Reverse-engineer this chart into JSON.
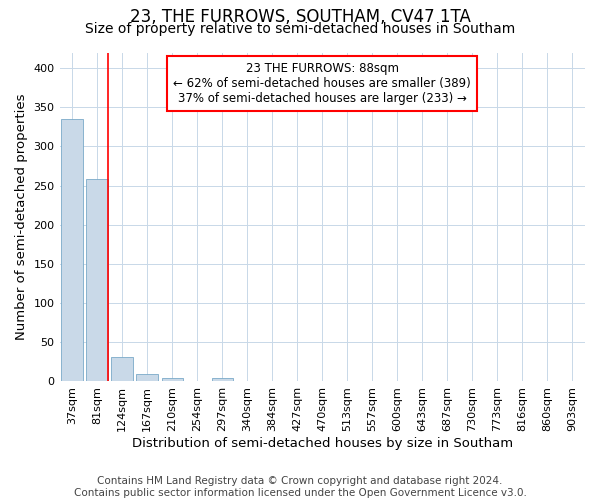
{
  "title": "23, THE FURROWS, SOUTHAM, CV47 1TA",
  "subtitle": "Size of property relative to semi-detached houses in Southam",
  "xlabel": "Distribution of semi-detached houses by size in Southam",
  "ylabel": "Number of semi-detached properties",
  "annotation_line1": "23 THE FURROWS: 88sqm",
  "annotation_line2": "← 62% of semi-detached houses are smaller (389)",
  "annotation_line3": "37% of semi-detached houses are larger (233) →",
  "footer_line1": "Contains HM Land Registry data © Crown copyright and database right 2024.",
  "footer_line2": "Contains public sector information licensed under the Open Government Licence v3.0.",
  "categories": [
    "37sqm",
    "81sqm",
    "124sqm",
    "167sqm",
    "210sqm",
    "254sqm",
    "297sqm",
    "340sqm",
    "384sqm",
    "427sqm",
    "470sqm",
    "513sqm",
    "557sqm",
    "600sqm",
    "643sqm",
    "687sqm",
    "730sqm",
    "773sqm",
    "816sqm",
    "860sqm",
    "903sqm"
  ],
  "values": [
    335,
    258,
    31,
    9,
    5,
    0,
    4,
    0,
    0,
    0,
    0,
    0,
    0,
    0,
    0,
    0,
    0,
    0,
    0,
    0,
    0
  ],
  "bar_color": "#c9d9e8",
  "bar_edge_color": "#7aaac8",
  "property_line_idx": 1,
  "property_line_color": "red",
  "annotation_box_edgecolor": "red",
  "ylim": [
    0,
    420
  ],
  "yticks": [
    0,
    50,
    100,
    150,
    200,
    250,
    300,
    350,
    400
  ],
  "background_color": "#ffffff",
  "grid_color": "#c8d8e8",
  "title_fontsize": 12,
  "subtitle_fontsize": 10,
  "axis_label_fontsize": 9.5,
  "tick_fontsize": 8,
  "annotation_fontsize": 8.5,
  "footer_fontsize": 7.5
}
